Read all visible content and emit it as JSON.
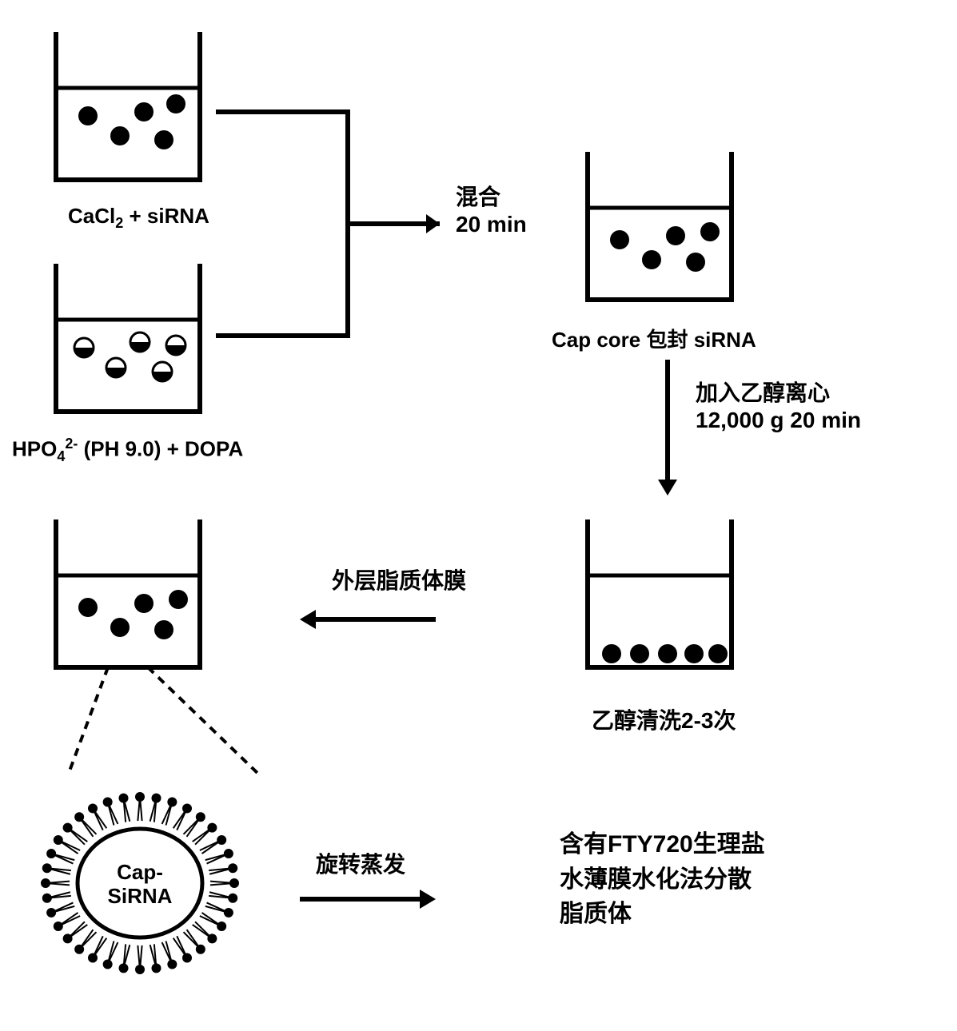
{
  "beakers": {
    "b1": {
      "label_html": "CaCl<sub>2</sub> + siRNA",
      "fill_style": "solid",
      "dots_y": "middle"
    },
    "b2": {
      "label_html": "HPO<sub>4</sub><sup>2-</sup> (PH 9.0) + DOPA",
      "fill_style": "half",
      "dots_y": "middle"
    },
    "b3": {
      "label": "Cap core 包封 siRNA",
      "fill_style": "solid",
      "dots_y": "middle"
    },
    "b4": {
      "label": "乙醇清洗2-3次",
      "fill_style": "solid",
      "dots_y": "bottom"
    },
    "b5": {
      "fill_style": "solid",
      "dots_y": "middle"
    }
  },
  "arrows": {
    "a1": {
      "text1": "混合",
      "text2": "20 min"
    },
    "a2": {
      "text1": "加入乙醇离心",
      "text2": "12,000 g  20 min"
    },
    "a3": {
      "text1": "外层脂质体膜"
    },
    "a4": {
      "text1": "旋转蒸发"
    }
  },
  "liposome": {
    "center_text": "Cap-SiRNA"
  },
  "final_text": {
    "line1": "含有FTY720生理盐",
    "line2": "水薄膜水化法分散",
    "line3": "脂质体"
  },
  "style": {
    "stroke": "#000000",
    "stroke_width": 6,
    "font_size_label": 26,
    "font_size_arrow": 28,
    "font_size_final": 30,
    "font_size_liposome": 26
  }
}
